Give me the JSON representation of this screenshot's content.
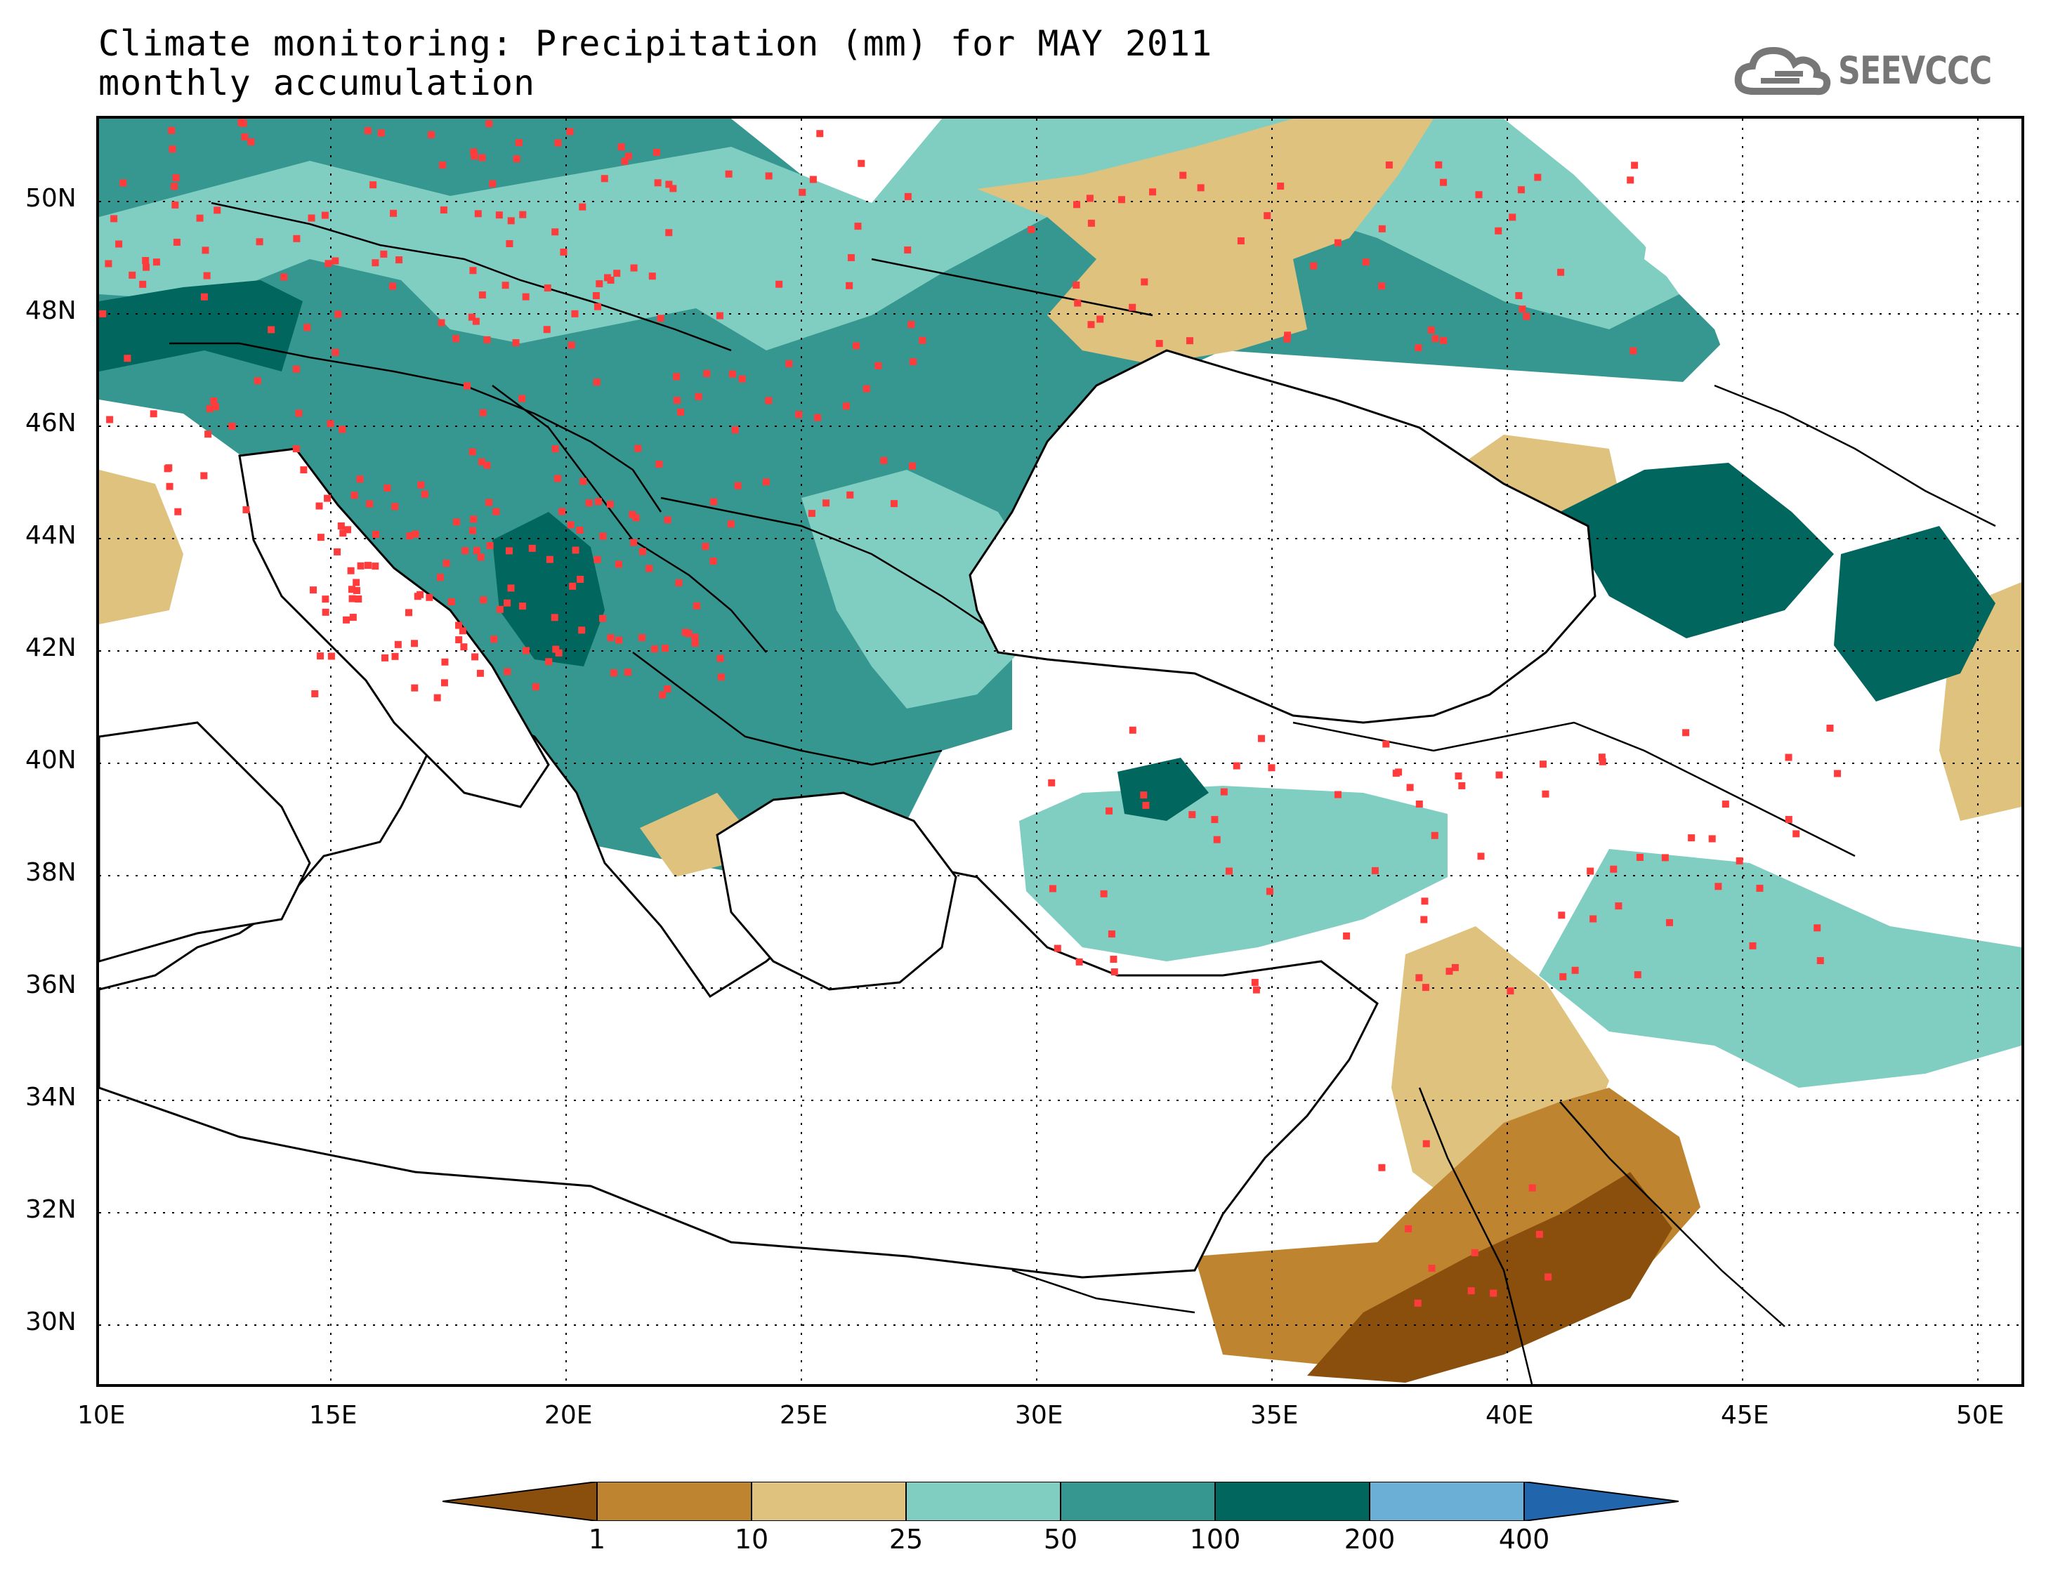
{
  "title": {
    "line1": "Climate monitoring: Precipitation (mm) for MAY 2011",
    "line2": "monthly accumulation"
  },
  "logo": {
    "text": "SEEVCCC",
    "icon": "cloud-icon"
  },
  "map": {
    "lon_range": [
      10,
      51
    ],
    "lat_range": [
      29,
      51.5
    ],
    "x_ticks": [
      "10E",
      "15E",
      "20E",
      "25E",
      "30E",
      "35E",
      "40E",
      "45E",
      "50E"
    ],
    "y_ticks": [
      "30N",
      "32N",
      "34N",
      "36N",
      "38N",
      "40N",
      "42N",
      "44N",
      "46N",
      "48N",
      "50N"
    ],
    "grid": "dotted"
  },
  "legend": {
    "levels": [
      "1",
      "10",
      "25",
      "50",
      "100",
      "200",
      "400"
    ],
    "colors": [
      "#8a4f0c",
      "#bf8430",
      "#dfc27d",
      "#80cdc1",
      "#35978f",
      "#01665e",
      "#6baed6",
      "#2166ac"
    ],
    "station_marker_color": "#ff3b3b"
  }
}
